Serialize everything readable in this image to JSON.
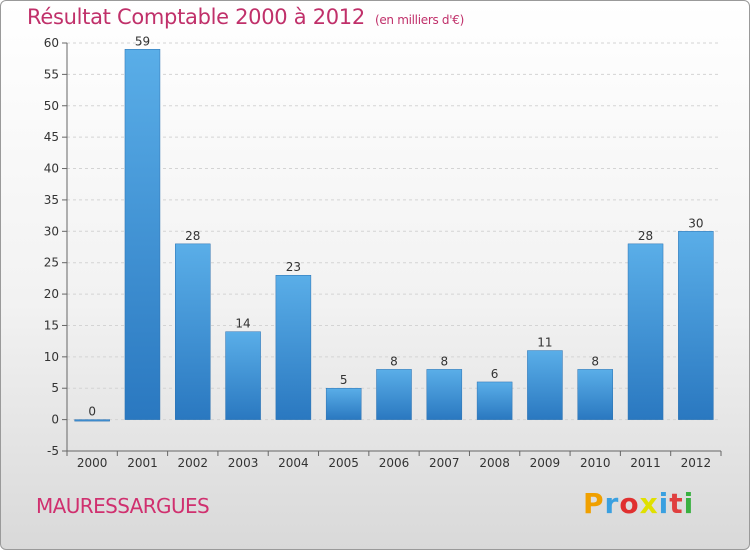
{
  "chart_data": {
    "type": "bar",
    "title": "Résultat Comptable 2000 à 2012",
    "subtitle": "(en milliers d'€)",
    "categories": [
      "2000",
      "2001",
      "2002",
      "2003",
      "2004",
      "2005",
      "2006",
      "2007",
      "2008",
      "2009",
      "2010",
      "2011",
      "2012"
    ],
    "values": [
      0,
      59,
      28,
      14,
      23,
      5,
      8,
      8,
      6,
      11,
      8,
      28,
      30
    ],
    "data_labels": [
      "0",
      "59",
      "28",
      "14",
      "23",
      "5",
      "8",
      "8",
      "6",
      "11",
      "8",
      "28",
      "30"
    ],
    "ylim": [
      -5,
      60
    ],
    "yticks": [
      -5,
      0,
      5,
      10,
      15,
      20,
      25,
      30,
      35,
      40,
      45,
      50,
      55,
      60
    ],
    "grid": true,
    "bar_color": "#3a8fd6"
  },
  "commune": "MAURESSARGUES",
  "logo": {
    "letters": [
      "P",
      "r",
      "o",
      "x",
      "i",
      "t",
      "i"
    ],
    "colors": [
      "#f0a000",
      "#3aa0e0",
      "#e03030",
      "#e0e000",
      "#3aa0e0",
      "#e04040",
      "#3ab040"
    ]
  }
}
